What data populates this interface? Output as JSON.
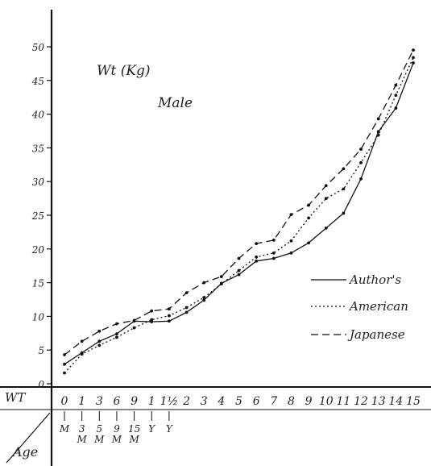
{
  "chart_data": {
    "type": "line",
    "title": "Wt (Kg)",
    "subtitle": "Male",
    "ylabel": "WT",
    "xlabel": "Age",
    "ylim": [
      0,
      52
    ],
    "yticks": [
      0,
      5,
      10,
      15,
      20,
      25,
      30,
      35,
      40,
      45,
      50
    ],
    "grid": false,
    "legend_position": "right",
    "categories": [
      {
        "top": "0",
        "bottom": "M"
      },
      {
        "top": "1",
        "bottom": "3 M"
      },
      {
        "top": "3",
        "bottom": "5 M"
      },
      {
        "top": "6",
        "bottom": "9 M"
      },
      {
        "top": "9",
        "bottom": "15 M"
      },
      {
        "top": "1",
        "bottom": "Y"
      },
      {
        "top": "1½",
        "bottom": "Y"
      },
      {
        "top": "2",
        "bottom": ""
      },
      {
        "top": "3",
        "bottom": ""
      },
      {
        "top": "4",
        "bottom": ""
      },
      {
        "top": "5",
        "bottom": ""
      },
      {
        "top": "6",
        "bottom": ""
      },
      {
        "top": "7",
        "bottom": ""
      },
      {
        "top": "8",
        "bottom": ""
      },
      {
        "top": "9",
        "bottom": ""
      },
      {
        "top": "10",
        "bottom": ""
      },
      {
        "top": "11",
        "bottom": ""
      },
      {
        "top": "12",
        "bottom": ""
      },
      {
        "top": "13",
        "bottom": ""
      },
      {
        "top": "14",
        "bottom": ""
      },
      {
        "top": "15",
        "bottom": ""
      }
    ],
    "series": [
      {
        "name": "Author's",
        "style": "solid",
        "values": [
          2.9,
          4.6,
          6.3,
          7.4,
          9.3,
          9.2,
          9.3,
          10.6,
          12.4,
          14.9,
          16.2,
          18.2,
          18.6,
          19.4,
          20.9,
          23.1,
          25.3,
          30.4,
          37.4,
          40.9,
          47.6
        ]
      },
      {
        "name": "American",
        "style": "dotted",
        "values": [
          1.6,
          4.4,
          5.7,
          6.9,
          8.3,
          9.5,
          10.1,
          11.3,
          12.8,
          14.8,
          16.8,
          18.8,
          19.4,
          21.2,
          24.6,
          27.5,
          28.9,
          32.8,
          36.9,
          42.8,
          48.4
        ]
      },
      {
        "name": "Japanese",
        "style": "dashed",
        "values": [
          4.3,
          6.3,
          7.8,
          8.9,
          9.4,
          10.8,
          11.1,
          13.5,
          15.0,
          15.9,
          18.6,
          20.8,
          21.3,
          25.1,
          26.5,
          29.4,
          31.9,
          34.8,
          39.3,
          44.3,
          49.5
        ]
      }
    ]
  }
}
